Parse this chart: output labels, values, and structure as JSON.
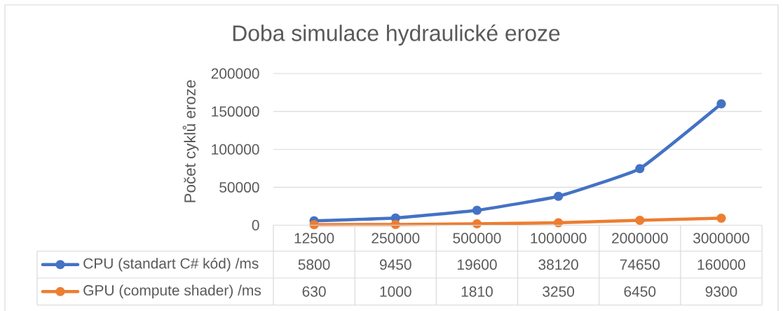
{
  "chart_data": {
    "type": "line",
    "title": "Doba simulace hydraulické eroze",
    "ylabel": "Počet cyklů eroze",
    "categories": [
      "12500",
      "250000",
      "500000",
      "1000000",
      "2000000",
      "3000000"
    ],
    "series": [
      {
        "name": "CPU (standart C# kód) /ms",
        "color": "#4472c4",
        "values": [
          5800,
          9450,
          19600,
          38120,
          74650,
          160000
        ]
      },
      {
        "name": "GPU (compute shader) /ms",
        "color": "#ed7d31",
        "values": [
          630,
          1000,
          1810,
          3250,
          6450,
          9300
        ]
      }
    ],
    "ylim": [
      0,
      200000
    ],
    "yticks": [
      0,
      50000,
      100000,
      150000,
      200000
    ],
    "grid": "y",
    "legend": "bottom",
    "marker": "circle",
    "data_labels": true
  }
}
